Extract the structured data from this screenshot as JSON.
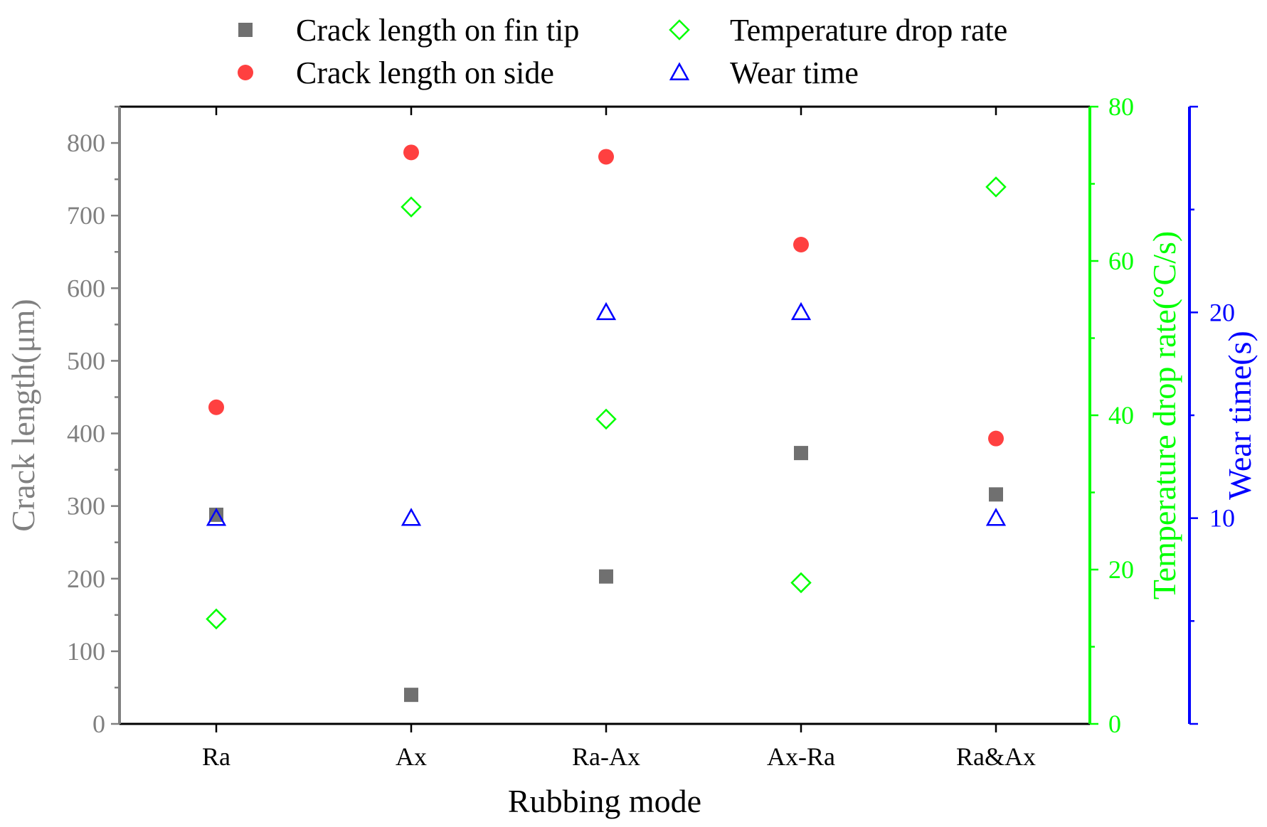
{
  "chart_data": {
    "type": "scatter",
    "categories": [
      "Ra",
      "Ax",
      "Ra-Ax",
      "Ax-Ra",
      "Ra&Ax"
    ],
    "xlabel": "Rubbing mode",
    "axes": {
      "left": {
        "label": "Crack length(μm)",
        "ylim": [
          0,
          850
        ],
        "ticks": [
          0,
          100,
          200,
          300,
          400,
          500,
          600,
          700,
          800
        ],
        "color": "#808080"
      },
      "right1": {
        "label": "Temperature drop rate(°C/s)",
        "ylim": [
          0,
          80
        ],
        "ticks": [
          0,
          20,
          40,
          60,
          80
        ],
        "color": "#00ff00"
      },
      "right2": {
        "label": "Wear time(s)",
        "ylim": [
          0,
          30
        ],
        "ticks": [
          10,
          20
        ],
        "color": "#0000ff"
      }
    },
    "series": [
      {
        "name": "Crack length on fin tip",
        "axis": "left",
        "marker": "square",
        "color": "#707070",
        "values": [
          288,
          40,
          203,
          373,
          316
        ]
      },
      {
        "name": "Crack length on side",
        "axis": "left",
        "marker": "circle",
        "color": "#ff4040",
        "values": [
          436,
          787,
          781,
          660,
          393
        ]
      },
      {
        "name": "Temperature drop rate",
        "axis": "right1",
        "marker": "diamond",
        "color": "#00ff00",
        "values": [
          13.6,
          67,
          39.5,
          18.3,
          69.6
        ]
      },
      {
        "name": "Wear time",
        "axis": "right2",
        "marker": "triangle",
        "color": "#0000ff",
        "values": [
          10,
          10,
          20,
          20,
          10
        ]
      }
    ],
    "legend": "top"
  }
}
